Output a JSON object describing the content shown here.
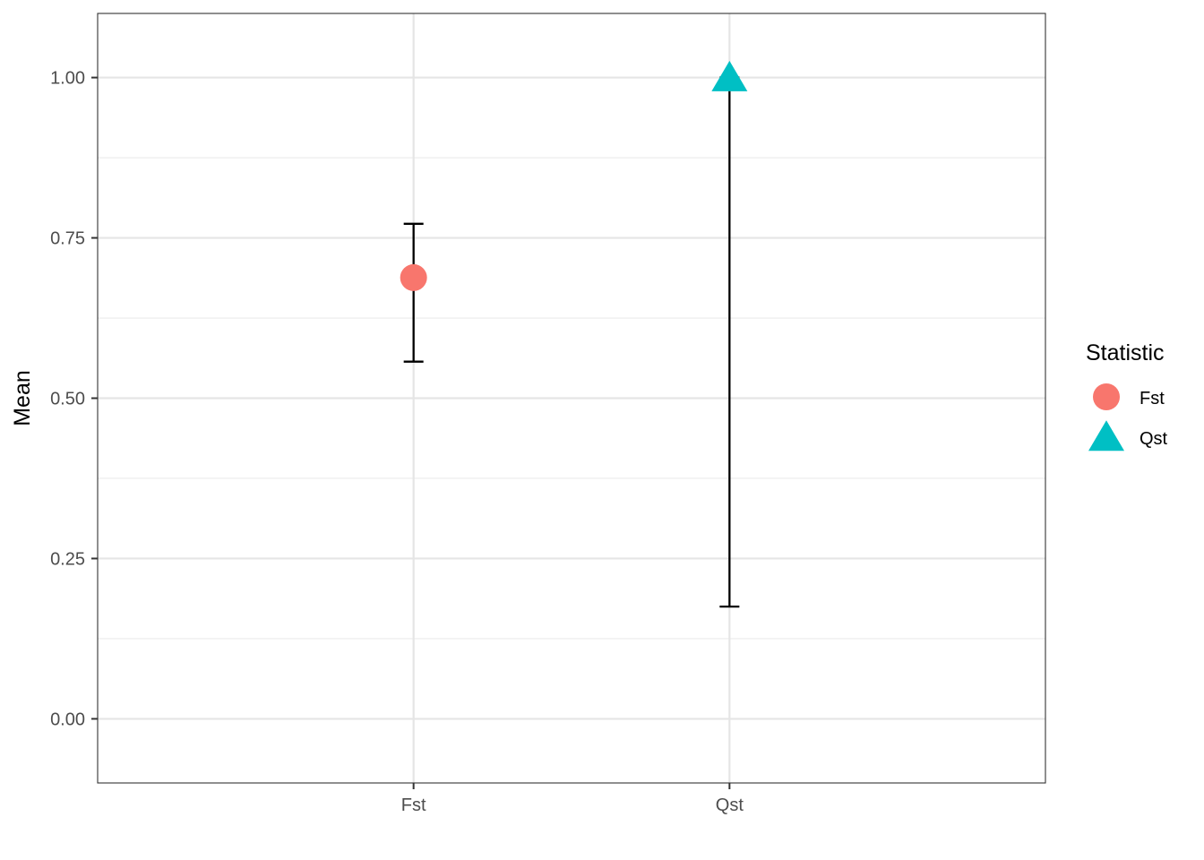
{
  "chart_data": {
    "type": "scatter",
    "title": "",
    "xlabel": "",
    "ylabel": "Mean",
    "categories": [
      "Fst",
      "Qst"
    ],
    "ylim": [
      -0.1,
      1.1
    ],
    "yticks": [
      0.0,
      0.25,
      0.5,
      0.75,
      1.0
    ],
    "ytick_labels": [
      "0.00",
      "0.25",
      "0.50",
      "0.75",
      "1.00"
    ],
    "grid": true,
    "legend": {
      "title": "Statistic",
      "position": "right",
      "entries": [
        {
          "label": "Fst",
          "shape": "circle",
          "color": "#F8766D"
        },
        {
          "label": "Qst",
          "shape": "triangle",
          "color": "#00BFC4"
        }
      ]
    },
    "series": [
      {
        "category": "Fst",
        "shape": "circle",
        "color": "#F8766D",
        "mean": 0.688,
        "lower": 0.557,
        "upper": 0.772
      },
      {
        "category": "Qst",
        "shape": "triangle",
        "color": "#00BFC4",
        "mean": 1.0,
        "lower": 0.175,
        "upper": 1.0
      }
    ]
  }
}
